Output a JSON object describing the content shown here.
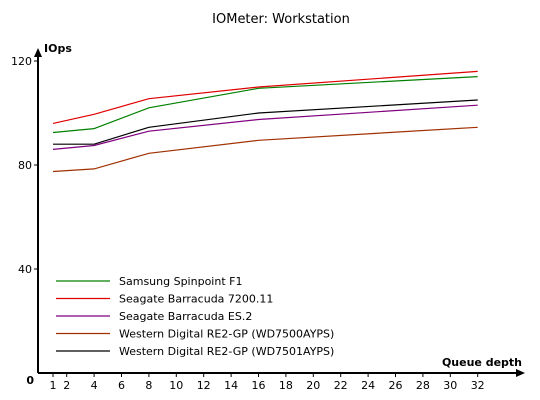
{
  "chart_data": {
    "type": "line",
    "title": "IOMeter: Workstation",
    "ylabel": "IOps",
    "xlabel": "Queue depth",
    "origin_label": "0",
    "ylim": [
      0,
      125
    ],
    "y_ticks": [
      40,
      80,
      120
    ],
    "x_ticks": [
      1,
      2,
      4,
      6,
      8,
      10,
      12,
      14,
      16,
      18,
      20,
      22,
      24,
      26,
      28,
      30,
      32
    ],
    "x": [
      1,
      4,
      8,
      16,
      32
    ],
    "grid": false,
    "legend_position": "bottom-left",
    "series": [
      {
        "name": "Samsung Spinpoint F1",
        "color": "#008000",
        "values": [
          92.5,
          94,
          102,
          109.5,
          114
        ]
      },
      {
        "name": "Seagate Barracuda 7200.11",
        "color": "#e00000",
        "values": [
          96,
          99.5,
          105.5,
          110,
          116
        ]
      },
      {
        "name": "Seagate Barracuda ES.2",
        "color": "#800080",
        "values": [
          86,
          87.5,
          93,
          97.5,
          103
        ]
      },
      {
        "name": "Western Digital RE2-GP (WD7500AYPS)",
        "color": "#a03000",
        "values": [
          77.5,
          78.5,
          84.5,
          89.5,
          94.5
        ]
      },
      {
        "name": "Western Digital RE2-GP (WD7501AYPS)",
        "color": "#000000",
        "values": [
          88,
          88,
          94.5,
          100,
          105
        ]
      }
    ]
  }
}
